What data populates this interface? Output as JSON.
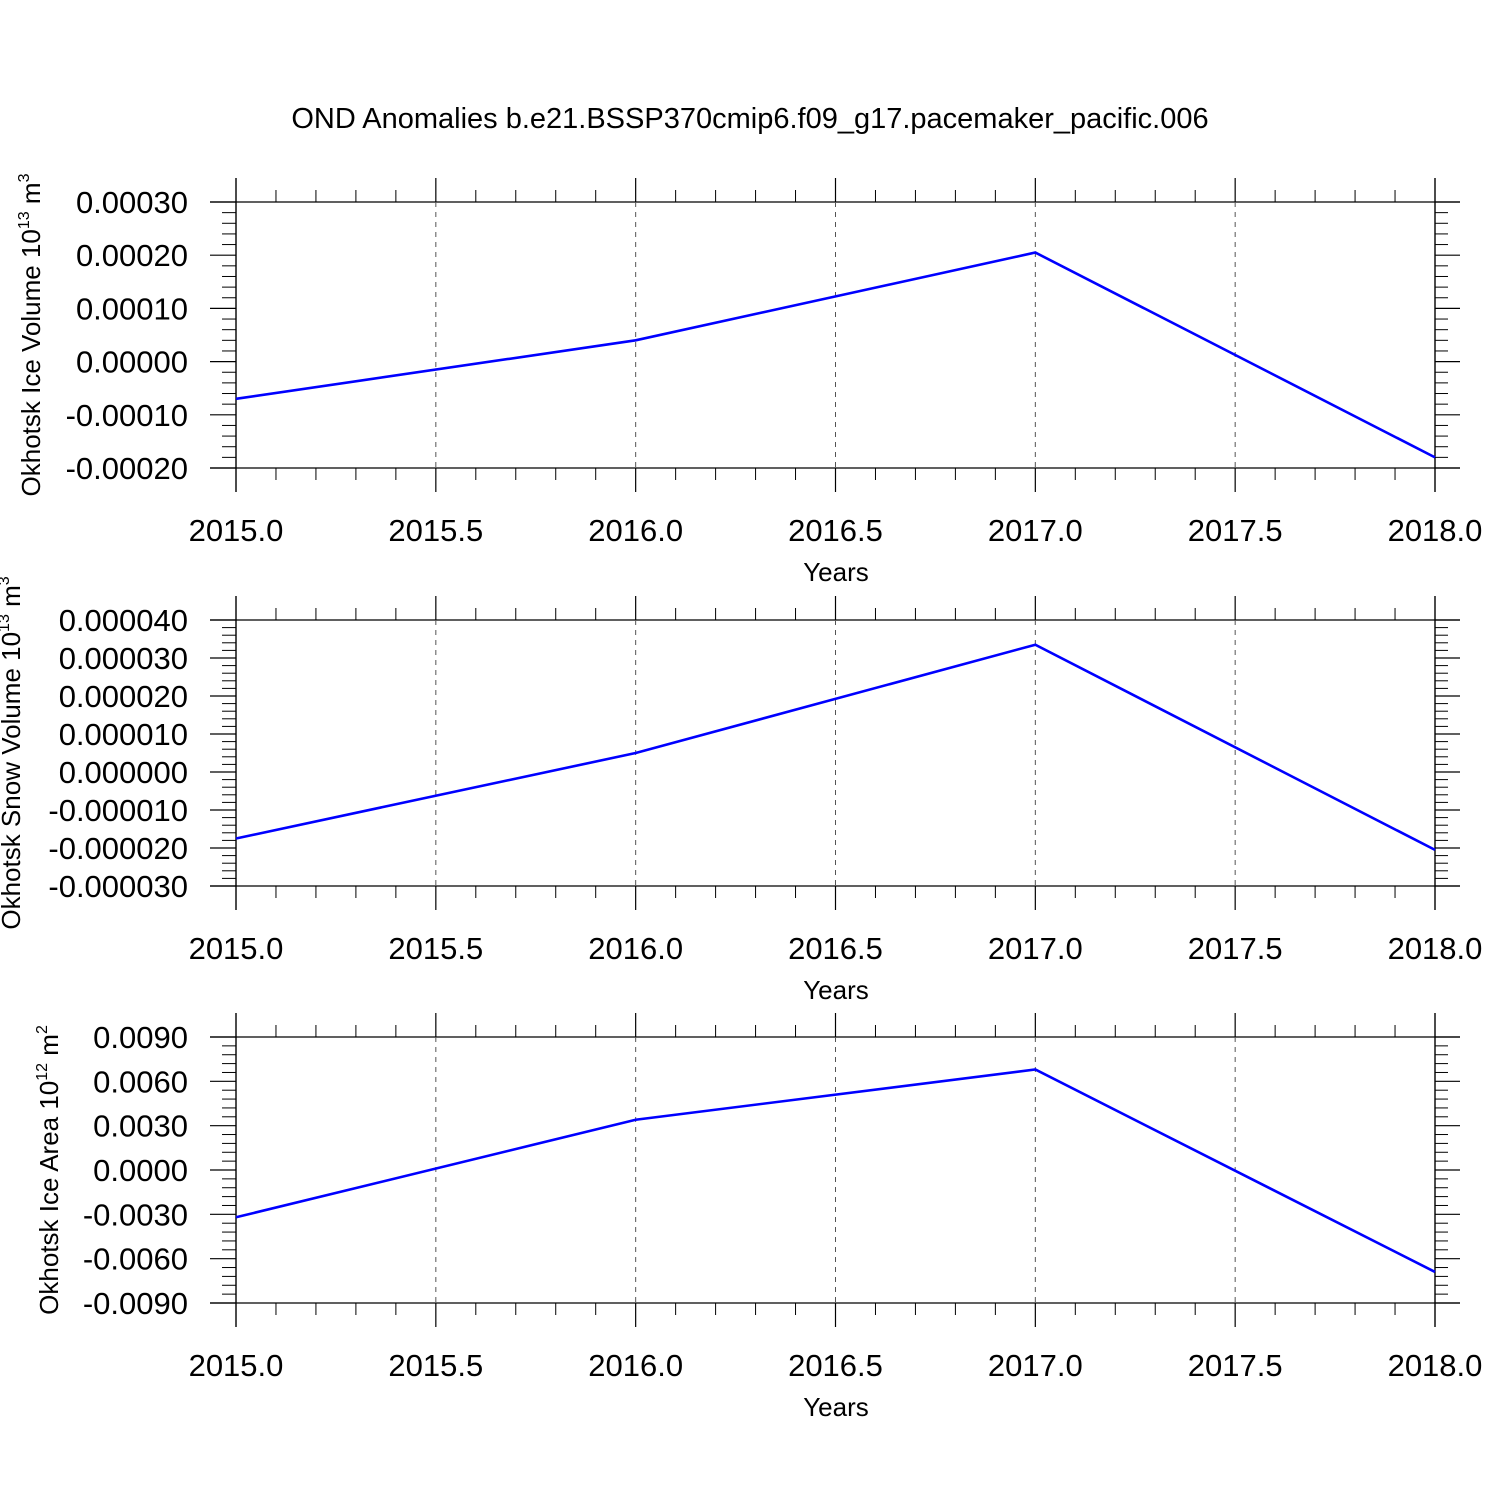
{
  "title": "OND Anomalies b.e21.BSSP370cmip6.f09_g17.pacemaker_pacific.006",
  "line_color": "#0000ff",
  "chart_data": [
    {
      "type": "line",
      "ylabel": "Okhotsk Ice Volume 10",
      "ylabel_exp": "13",
      "ylabel_unit": " m",
      "ylabel_unit_exp": "3",
      "xlabel": "Years",
      "x": [
        2015,
        2016,
        2017,
        2018
      ],
      "y": [
        -7e-05,
        4e-05,
        0.000205,
        -0.00018
      ],
      "xlim": [
        2015,
        2018
      ],
      "ylim": [
        -0.0002,
        0.0003
      ],
      "xticks": [
        "2015.0",
        "2015.5",
        "2016.0",
        "2016.5",
        "2017.0",
        "2017.5",
        "2018.0"
      ],
      "yticks": [
        "0.00030",
        "0.00020",
        "0.00010",
        "0.00000",
        "-0.00010",
        "-0.00020"
      ],
      "grid": "vertical dashed"
    },
    {
      "type": "line",
      "ylabel": "Okhotsk Snow Volume 10",
      "ylabel_exp": "13",
      "ylabel_unit": " m",
      "ylabel_unit_exp": "3",
      "xlabel": "Years",
      "x": [
        2015,
        2016,
        2017,
        2018
      ],
      "y": [
        -1.75e-05,
        5e-06,
        3.35e-05,
        -2.05e-05
      ],
      "xlim": [
        2015,
        2018
      ],
      "ylim": [
        -3e-05,
        4e-05
      ],
      "xticks": [
        "2015.0",
        "2015.5",
        "2016.0",
        "2016.5",
        "2017.0",
        "2017.5",
        "2018.0"
      ],
      "yticks": [
        "0.000040",
        "0.000030",
        "0.000020",
        "0.000010",
        "0.000000",
        "-0.000010",
        "-0.000020",
        "-0.000030"
      ],
      "grid": "vertical dashed"
    },
    {
      "type": "line",
      "ylabel": "Okhotsk Ice Area 10",
      "ylabel_exp": "12",
      "ylabel_unit": " m",
      "ylabel_unit_exp": "2",
      "xlabel": "Years",
      "x": [
        2015,
        2016,
        2017,
        2018
      ],
      "y": [
        -0.0032,
        0.0034,
        0.0068,
        -0.0069
      ],
      "xlim": [
        2015,
        2018
      ],
      "ylim": [
        -0.009,
        0.009
      ],
      "xticks": [
        "2015.0",
        "2015.5",
        "2016.0",
        "2016.5",
        "2017.0",
        "2017.5",
        "2018.0"
      ],
      "yticks": [
        "0.0090",
        "0.0060",
        "0.0030",
        "0.0000",
        "-0.0030",
        "-0.0060",
        "-0.0090"
      ],
      "grid": "vertical dashed"
    }
  ]
}
